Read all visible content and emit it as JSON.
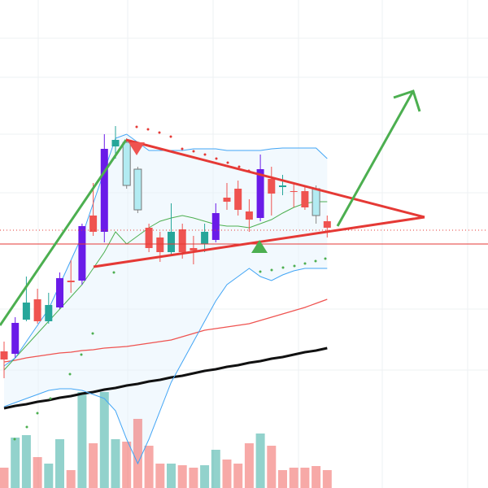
{
  "chart_data": {
    "type": "candlestick",
    "ylim": [
      0,
      600
    ],
    "volume_ylim": [
      0,
      600
    ],
    "up_color": "#26a69a",
    "down_color": "#ef5350",
    "highlight_color": "#6a1be8",
    "pale_color": "#b2ebf2",
    "candles": [
      {
        "open": 168,
        "high": 180,
        "low": 135,
        "close": 158,
        "style": "down"
      },
      {
        "open": 165,
        "high": 210,
        "low": 160,
        "close": 203,
        "style": "highlight"
      },
      {
        "open": 207,
        "high": 260,
        "low": 205,
        "close": 228,
        "style": "up"
      },
      {
        "open": 232,
        "high": 245,
        "low": 202,
        "close": 205,
        "style": "down"
      },
      {
        "open": 205,
        "high": 240,
        "low": 202,
        "close": 225,
        "style": "up"
      },
      {
        "open": 222,
        "high": 265,
        "low": 220,
        "close": 258,
        "style": "highlight"
      },
      {
        "open": 255,
        "high": 280,
        "low": 240,
        "close": 253,
        "style": "down"
      },
      {
        "open": 255,
        "high": 325,
        "low": 250,
        "close": 322,
        "style": "highlight"
      },
      {
        "open": 335,
        "high": 375,
        "low": 310,
        "close": 315,
        "style": "down"
      },
      {
        "open": 315,
        "high": 435,
        "low": 302,
        "close": 417,
        "style": "highlight"
      },
      {
        "open": 420,
        "high": 445,
        "low": 405,
        "close": 428,
        "style": "up"
      },
      {
        "open": 425,
        "high": 430,
        "low": 368,
        "close": 372,
        "style": "pale"
      },
      {
        "open": 392,
        "high": 395,
        "low": 338,
        "close": 342,
        "style": "pale"
      },
      {
        "open": 320,
        "high": 325,
        "low": 290,
        "close": 295,
        "style": "down"
      },
      {
        "open": 308,
        "high": 315,
        "low": 278,
        "close": 290,
        "style": "down"
      },
      {
        "open": 290,
        "high": 350,
        "low": 285,
        "close": 315,
        "style": "up"
      },
      {
        "open": 318,
        "high": 325,
        "low": 282,
        "close": 290,
        "style": "down"
      },
      {
        "open": 295,
        "high": 310,
        "low": 275,
        "close": 292,
        "style": "down"
      },
      {
        "open": 300,
        "high": 325,
        "low": 290,
        "close": 315,
        "style": "up"
      },
      {
        "open": 305,
        "high": 350,
        "low": 302,
        "close": 338,
        "style": "highlight"
      },
      {
        "open": 357,
        "high": 375,
        "low": 342,
        "close": 352,
        "style": "down"
      },
      {
        "open": 368,
        "high": 378,
        "low": 335,
        "close": 342,
        "style": "down"
      },
      {
        "open": 340,
        "high": 355,
        "low": 315,
        "close": 330,
        "style": "down"
      },
      {
        "open": 332,
        "high": 410,
        "low": 328,
        "close": 392,
        "style": "highlight"
      },
      {
        "open": 380,
        "high": 395,
        "low": 335,
        "close": 362,
        "style": "down"
      },
      {
        "open": 372,
        "high": 385,
        "low": 360,
        "close": 370,
        "style": "up"
      },
      {
        "open": 365,
        "high": 375,
        "low": 345,
        "close": 364,
        "style": "down"
      },
      {
        "open": 365,
        "high": 370,
        "low": 342,
        "close": 345,
        "style": "down"
      },
      {
        "open": 368,
        "high": 372,
        "low": 325,
        "close": 335,
        "style": "pale"
      },
      {
        "open": 328,
        "high": 335,
        "low": 308,
        "close": 320,
        "style": "down"
      }
    ],
    "volume": [
      25,
      62,
      65,
      38,
      30,
      60,
      22,
      118,
      55,
      118,
      60,
      57,
      85,
      52,
      30,
      30,
      28,
      25,
      28,
      47,
      35,
      30,
      55,
      67,
      52,
      22,
      25,
      25,
      27,
      22
    ],
    "lines": [
      {
        "color": "#111111",
        "width": 3,
        "values": [
          98,
          101,
          103,
          106,
          108,
          111,
          113,
          116,
          118,
          121,
          123,
          126,
          128,
          131,
          133,
          136,
          138,
          141,
          144,
          146,
          149,
          151,
          154,
          156,
          159,
          161,
          164,
          167,
          169,
          172
        ]
      },
      {
        "color": "#ef5350",
        "width": 1.2,
        "values": [
          155,
          157,
          160,
          162,
          164,
          166,
          167,
          169,
          170,
          172,
          173,
          174,
          176,
          178,
          180,
          182,
          186,
          190,
          194,
          196,
          198,
          200,
          202,
          206,
          210,
          214,
          218,
          222,
          227,
          232
        ]
      },
      {
        "color": "#4caf50",
        "width": 1,
        "values": [
          145,
          160,
          175,
          190,
          205,
          220,
          235,
          250,
          270,
          290,
          315,
          300,
          310,
          320,
          328,
          332,
          335,
          332,
          328,
          324,
          322,
          322,
          320,
          325,
          330,
          338,
          345,
          350,
          352,
          352
        ]
      },
      {
        "color": "#42a5f5",
        "width": 1,
        "values": [
          150,
          160,
          180,
          200,
          220,
          250,
          280,
          310,
          350,
          390,
          430,
          435,
          425,
          415,
          415,
          415,
          415,
          417,
          417,
          417,
          415,
          415,
          415,
          415,
          417,
          418,
          418,
          418,
          418,
          405
        ]
      },
      {
        "color": "#42a5f5",
        "width": 1,
        "values": [
          100,
          105,
          110,
          115,
          120,
          122,
          122,
          120,
          115,
          110,
          95,
          60,
          30,
          60,
          95,
          130,
          155,
          180,
          205,
          230,
          250,
          260,
          270,
          260,
          255,
          262,
          267,
          270,
          270,
          270
        ]
      }
    ]
  }
}
